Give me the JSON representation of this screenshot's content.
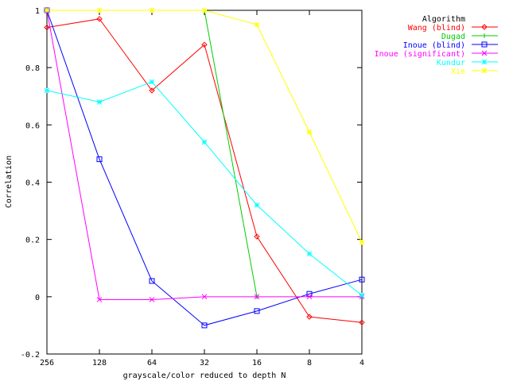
{
  "chart_data": {
    "type": "line",
    "xlabel": "grayscale/color reduced to depth N",
    "ylabel": "Correlation",
    "x": [
      256,
      128,
      64,
      32,
      16,
      8,
      4
    ],
    "x_scale": "log2",
    "x_ticks": [
      "256",
      "128",
      "64",
      "32",
      "16",
      "8",
      "4"
    ],
    "ylim": [
      -0.2,
      1
    ],
    "y_ticks": [
      "-0.2",
      "0",
      "0.2",
      "0.4",
      "0.6",
      "0.8",
      "1"
    ],
    "grid": false,
    "legend_title": "Algorithm",
    "legend_position": "top-right",
    "series": [
      {
        "name": "Wang (blind)",
        "color": "#ff0000",
        "marker": "diamond",
        "values": [
          0.94,
          0.97,
          0.72,
          0.88,
          0.21,
          -0.07,
          -0.09
        ]
      },
      {
        "name": "Dugad",
        "color": "#00cc00",
        "marker": "plus",
        "values": [
          1.0,
          1.0,
          1.0,
          1.0,
          0.0,
          null,
          null
        ]
      },
      {
        "name": "Inoue (blind)",
        "color": "#0000ff",
        "marker": "square",
        "values": [
          1.0,
          0.48,
          0.055,
          -0.1,
          -0.05,
          0.01,
          0.06
        ]
      },
      {
        "name": "Inoue (significant)",
        "color": "#ff00ff",
        "marker": "x",
        "values": [
          1.0,
          -0.01,
          -0.01,
          0.0,
          0.0,
          0.0,
          0.0
        ]
      },
      {
        "name": "Kundur",
        "color": "#00ffff",
        "marker": "star",
        "values": [
          0.72,
          0.68,
          0.75,
          0.54,
          0.32,
          0.15,
          0.005
        ]
      },
      {
        "name": "Xie",
        "color": "#ffff00",
        "marker": "star",
        "values": [
          1.0,
          1.0,
          1.0,
          1.0,
          0.95,
          0.575,
          0.19
        ]
      }
    ]
  }
}
